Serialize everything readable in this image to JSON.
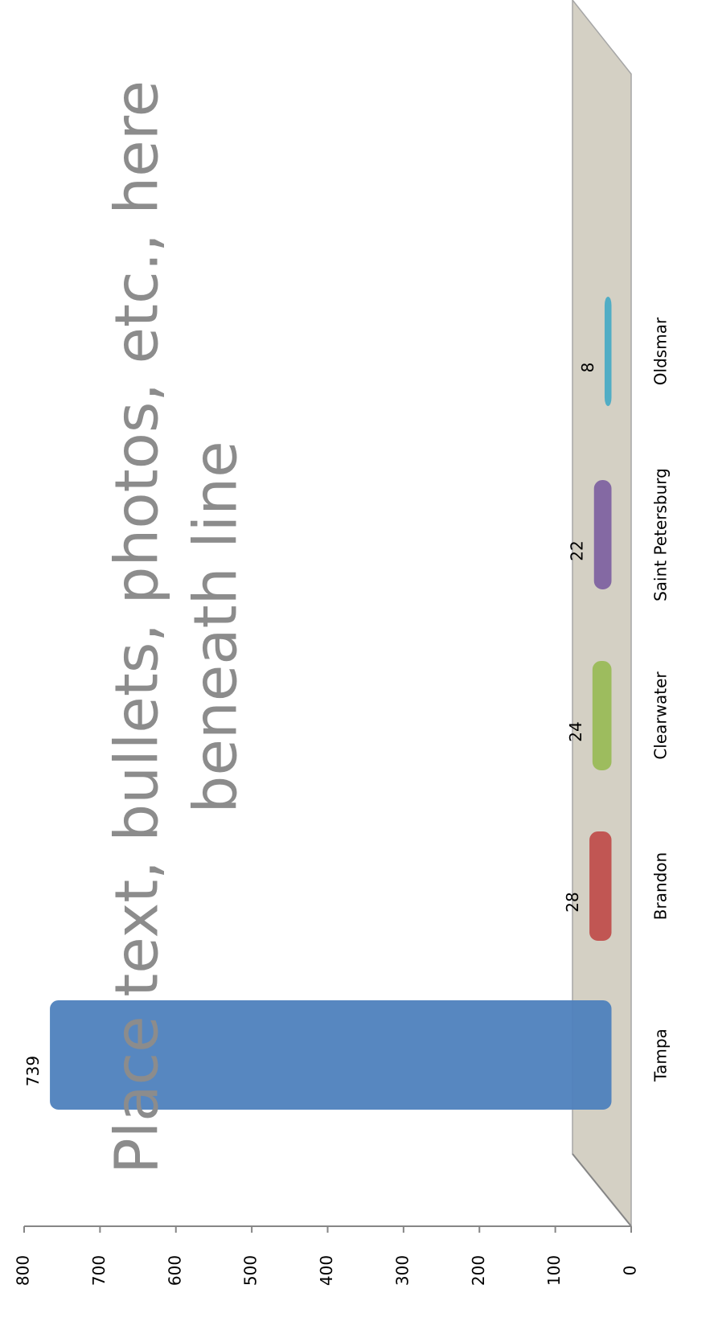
{
  "chart_data": {
    "type": "bar",
    "categories": [
      "Tampa",
      "Brandon",
      "Clearwater",
      "Saint Petersburg",
      "Oldsmar"
    ],
    "values": [
      739,
      28,
      24,
      22,
      8
    ],
    "colors": [
      "#4f81bd",
      "#c0504d",
      "#9bbb59",
      "#8064a2",
      "#4bacc6"
    ],
    "ylim": [
      0,
      800
    ],
    "yticks": [
      0,
      100,
      200,
      300,
      400,
      500,
      600,
      700,
      800
    ],
    "grid": false,
    "placeholder_lines": [
      "Place text, bullets, photos, etc., here",
      "beneath line"
    ]
  }
}
